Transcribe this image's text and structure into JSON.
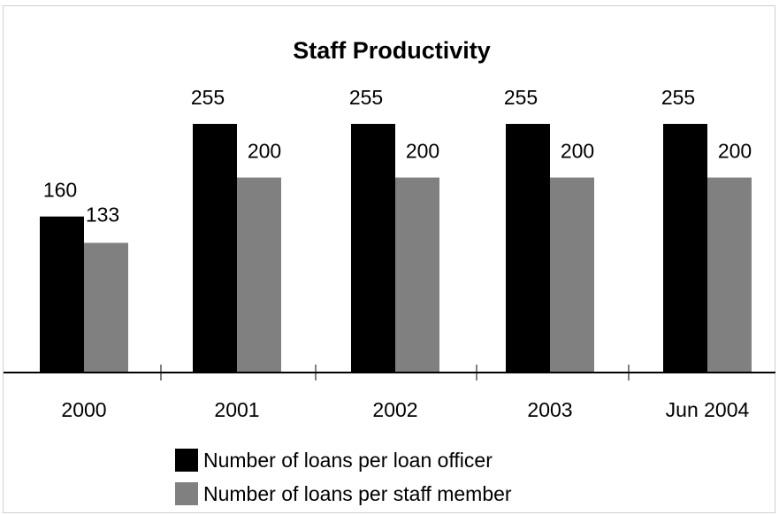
{
  "chart_data": {
    "type": "bar",
    "title": "Staff Productivity",
    "xlabel": "",
    "ylabel": "",
    "categories": [
      "2000",
      "2001",
      "2002",
      "2003",
      "Jun 2004"
    ],
    "series": [
      {
        "name": "Number of loans per loan officer",
        "values": [
          160,
          255,
          255,
          255,
          255
        ],
        "color": "#000000"
      },
      {
        "name": "Number of loans per staff member",
        "values": [
          133,
          200,
          200,
          200,
          200
        ],
        "color": "#808080"
      }
    ],
    "ylim": [
      0,
      255
    ],
    "grid": false,
    "legend_position": "bottom",
    "data_labels": true
  }
}
